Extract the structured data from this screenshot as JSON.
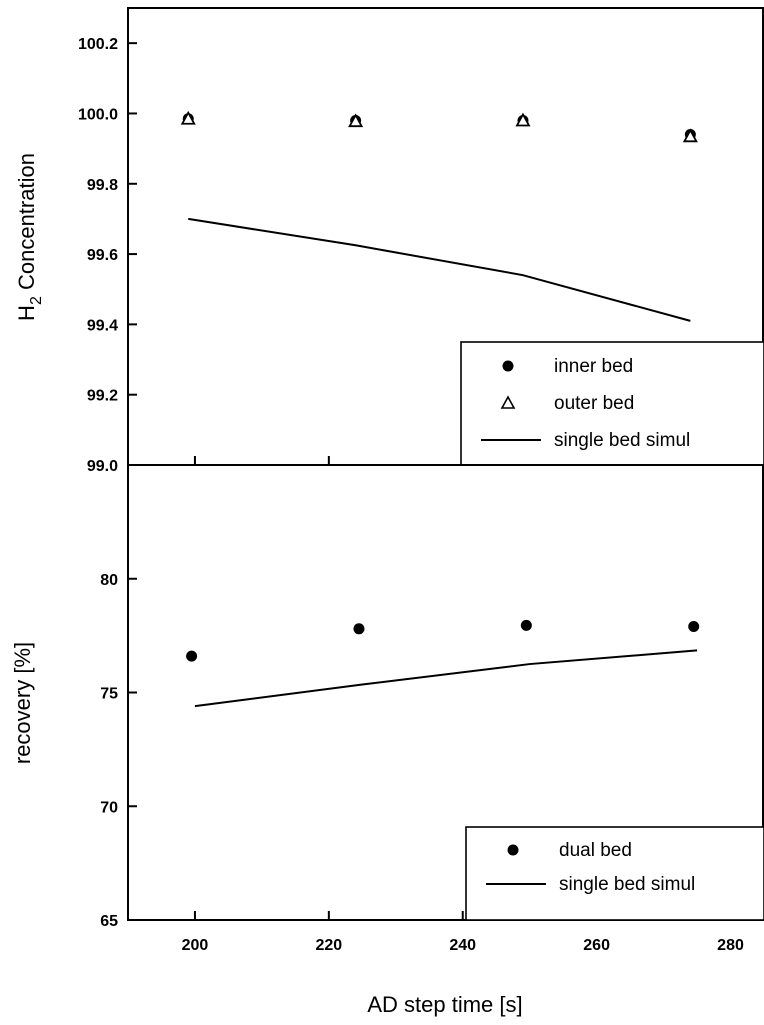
{
  "chart_data": [
    {
      "type": "scatter",
      "xlim": [
        190,
        285
      ],
      "ylim": [
        99.0,
        100.3
      ],
      "ylabel": {
        "base": "H",
        "sub": "2",
        "rest": " Concentration"
      },
      "xlabel": "",
      "yticks": [
        99.0,
        99.2,
        99.4,
        99.6,
        99.8,
        100.0,
        100.2
      ],
      "ytick_labels": [
        "99.0",
        "99.2",
        "99.4",
        "99.6",
        "99.8",
        "100.0",
        "100.2"
      ],
      "grid": false,
      "legend_position": "bottom-right",
      "series": [
        {
          "name": "inner bed",
          "marker": "circle",
          "x": [
            199,
            224,
            249,
            274
          ],
          "y": [
            99.985,
            99.98,
            99.98,
            99.94
          ]
        },
        {
          "name": "outer bed",
          "marker": "triangle",
          "x": [
            199,
            224,
            249,
            274
          ],
          "y": [
            99.985,
            99.978,
            99.98,
            99.935
          ]
        },
        {
          "name": "single bed simul",
          "marker": "line",
          "x": [
            199,
            224,
            249,
            274
          ],
          "y": [
            99.7,
            99.625,
            99.54,
            99.41
          ]
        }
      ]
    },
    {
      "type": "scatter",
      "xlim": [
        190,
        285
      ],
      "ylim": [
        65,
        85
      ],
      "ylabel": "recovery [%]",
      "xlabel": "AD step time [s]",
      "yticks": [
        65,
        70,
        75,
        80
      ],
      "ytick_labels": [
        "65",
        "70",
        "75",
        "80"
      ],
      "xticks": [
        200,
        220,
        240,
        260,
        280
      ],
      "xtick_labels": [
        "200",
        "220",
        "240",
        "260",
        "280"
      ],
      "grid": false,
      "legend_position": "bottom-right",
      "series": [
        {
          "name": "dual bed",
          "marker": "circle",
          "x": [
            199.5,
            224.5,
            249.5,
            274.5
          ],
          "y": [
            76.6,
            77.8,
            77.95,
            77.9
          ]
        },
        {
          "name": "single bed simul",
          "marker": "line",
          "x": [
            200,
            225,
            250,
            275
          ],
          "y": [
            74.4,
            75.35,
            76.25,
            76.85
          ]
        }
      ]
    }
  ]
}
